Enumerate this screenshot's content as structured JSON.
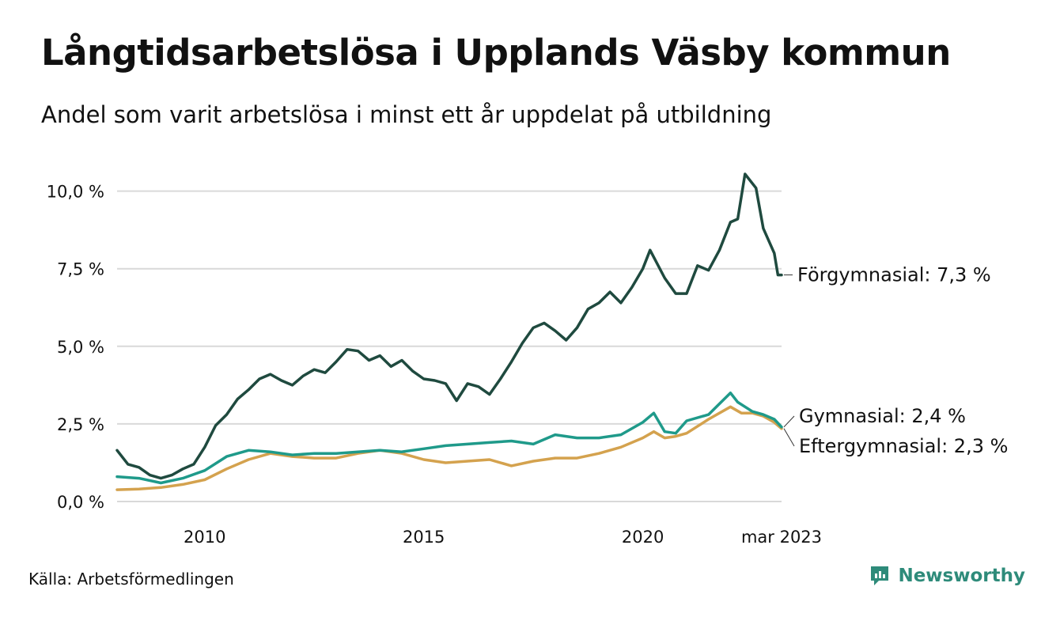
{
  "title": "Långtidsarbetslösa i Upplands Väsby kommun",
  "subtitle": "Andel som varit arbetslösa i minst ett år uppdelat på utbildning",
  "source": "Källa: Arbetsförmedlingen",
  "brand": "Newsworthy",
  "colors": {
    "forgymnasial": "#1f4a3f",
    "gymnasial": "#1f9a8a",
    "eftergymnasial": "#d4a24e",
    "grid": "#d9d9d9",
    "brand": "#2e8b7a"
  },
  "chart_data": {
    "type": "line",
    "title": "Långtidsarbetslösa i Upplands Väsby kommun",
    "xlabel": "",
    "ylabel": "",
    "ylim": [
      0,
      10.5
    ],
    "xlim": [
      "2008-01",
      "2023-03"
    ],
    "y_ticks": [
      "0,0 %",
      "2,5 %",
      "5,0 %",
      "7,5 %",
      "10,0 %"
    ],
    "y_tick_values": [
      0,
      2.5,
      5,
      7.5,
      10
    ],
    "x_ticks": [
      "2010",
      "2015",
      "2020",
      "mar 2023"
    ],
    "x_tick_values": [
      "2010-01",
      "2015-01",
      "2020-01",
      "2023-03"
    ],
    "grid": "horizontal",
    "series": [
      {
        "name": "Förgymnasial",
        "end_label": "Förgymnasial: 7,3 %",
        "color_key": "forgymnasial",
        "points": [
          [
            "2008-01",
            1.65
          ],
          [
            "2008-04",
            1.2
          ],
          [
            "2008-07",
            1.1
          ],
          [
            "2008-10",
            0.85
          ],
          [
            "2009-01",
            0.75
          ],
          [
            "2009-04",
            0.85
          ],
          [
            "2009-07",
            1.05
          ],
          [
            "2009-10",
            1.2
          ],
          [
            "2010-01",
            1.75
          ],
          [
            "2010-04",
            2.45
          ],
          [
            "2010-07",
            2.8
          ],
          [
            "2010-10",
            3.3
          ],
          [
            "2011-01",
            3.6
          ],
          [
            "2011-04",
            3.95
          ],
          [
            "2011-07",
            4.1
          ],
          [
            "2011-10",
            3.9
          ],
          [
            "2012-01",
            3.75
          ],
          [
            "2012-04",
            4.05
          ],
          [
            "2012-07",
            4.25
          ],
          [
            "2012-10",
            4.15
          ],
          [
            "2013-01",
            4.5
          ],
          [
            "2013-04",
            4.9
          ],
          [
            "2013-07",
            4.85
          ],
          [
            "2013-10",
            4.55
          ],
          [
            "2014-01",
            4.7
          ],
          [
            "2014-04",
            4.35
          ],
          [
            "2014-07",
            4.55
          ],
          [
            "2014-10",
            4.2
          ],
          [
            "2015-01",
            3.95
          ],
          [
            "2015-04",
            3.9
          ],
          [
            "2015-07",
            3.8
          ],
          [
            "2015-10",
            3.25
          ],
          [
            "2016-01",
            3.8
          ],
          [
            "2016-04",
            3.7
          ],
          [
            "2016-07",
            3.45
          ],
          [
            "2016-10",
            3.95
          ],
          [
            "2017-01",
            4.5
          ],
          [
            "2017-04",
            5.1
          ],
          [
            "2017-07",
            5.6
          ],
          [
            "2017-10",
            5.75
          ],
          [
            "2018-01",
            5.5
          ],
          [
            "2018-04",
            5.2
          ],
          [
            "2018-07",
            5.6
          ],
          [
            "2018-10",
            6.2
          ],
          [
            "2019-01",
            6.4
          ],
          [
            "2019-04",
            6.75
          ],
          [
            "2019-07",
            6.4
          ],
          [
            "2019-10",
            6.9
          ],
          [
            "2020-01",
            7.5
          ],
          [
            "2020-03",
            8.1
          ],
          [
            "2020-07",
            7.2
          ],
          [
            "2020-10",
            6.7
          ],
          [
            "2021-01",
            6.7
          ],
          [
            "2021-04",
            7.6
          ],
          [
            "2021-07",
            7.45
          ],
          [
            "2021-10",
            8.1
          ],
          [
            "2022-01",
            9.0
          ],
          [
            "2022-03",
            9.1
          ],
          [
            "2022-05",
            10.55
          ],
          [
            "2022-08",
            10.1
          ],
          [
            "2022-10",
            8.8
          ],
          [
            "2023-01",
            8.0
          ],
          [
            "2023-02",
            7.3
          ],
          [
            "2023-03",
            7.3
          ]
        ]
      },
      {
        "name": "Gymnasial",
        "end_label": "Gymnasial: 2,4 %",
        "color_key": "gymnasial",
        "points": [
          [
            "2008-01",
            0.8
          ],
          [
            "2008-07",
            0.75
          ],
          [
            "2009-01",
            0.6
          ],
          [
            "2009-07",
            0.75
          ],
          [
            "2010-01",
            1.0
          ],
          [
            "2010-07",
            1.45
          ],
          [
            "2011-01",
            1.65
          ],
          [
            "2011-07",
            1.6
          ],
          [
            "2012-01",
            1.5
          ],
          [
            "2012-07",
            1.55
          ],
          [
            "2013-01",
            1.55
          ],
          [
            "2013-07",
            1.6
          ],
          [
            "2014-01",
            1.65
          ],
          [
            "2014-07",
            1.6
          ],
          [
            "2015-01",
            1.7
          ],
          [
            "2015-07",
            1.8
          ],
          [
            "2016-01",
            1.85
          ],
          [
            "2016-07",
            1.9
          ],
          [
            "2017-01",
            1.95
          ],
          [
            "2017-07",
            1.85
          ],
          [
            "2018-01",
            2.15
          ],
          [
            "2018-07",
            2.05
          ],
          [
            "2019-01",
            2.05
          ],
          [
            "2019-07",
            2.15
          ],
          [
            "2020-01",
            2.55
          ],
          [
            "2020-04",
            2.85
          ],
          [
            "2020-07",
            2.25
          ],
          [
            "2020-10",
            2.2
          ],
          [
            "2021-01",
            2.6
          ],
          [
            "2021-07",
            2.8
          ],
          [
            "2022-01",
            3.5
          ],
          [
            "2022-03",
            3.2
          ],
          [
            "2022-07",
            2.9
          ],
          [
            "2022-10",
            2.8
          ],
          [
            "2023-01",
            2.65
          ],
          [
            "2023-03",
            2.4
          ]
        ]
      },
      {
        "name": "Eftergymnasial",
        "end_label": "Eftergymnasial: 2,3 %",
        "color_key": "eftergymnasial",
        "points": [
          [
            "2008-01",
            0.38
          ],
          [
            "2008-07",
            0.4
          ],
          [
            "2009-01",
            0.45
          ],
          [
            "2009-07",
            0.55
          ],
          [
            "2010-01",
            0.7
          ],
          [
            "2010-07",
            1.05
          ],
          [
            "2011-01",
            1.35
          ],
          [
            "2011-07",
            1.55
          ],
          [
            "2012-01",
            1.45
          ],
          [
            "2012-07",
            1.4
          ],
          [
            "2013-01",
            1.4
          ],
          [
            "2013-07",
            1.55
          ],
          [
            "2014-01",
            1.65
          ],
          [
            "2014-07",
            1.55
          ],
          [
            "2015-01",
            1.35
          ],
          [
            "2015-07",
            1.25
          ],
          [
            "2016-01",
            1.3
          ],
          [
            "2016-07",
            1.35
          ],
          [
            "2017-01",
            1.15
          ],
          [
            "2017-07",
            1.3
          ],
          [
            "2018-01",
            1.4
          ],
          [
            "2018-07",
            1.4
          ],
          [
            "2019-01",
            1.55
          ],
          [
            "2019-07",
            1.75
          ],
          [
            "2020-01",
            2.05
          ],
          [
            "2020-04",
            2.25
          ],
          [
            "2020-07",
            2.05
          ],
          [
            "2020-10",
            2.1
          ],
          [
            "2021-01",
            2.2
          ],
          [
            "2021-07",
            2.65
          ],
          [
            "2022-01",
            3.05
          ],
          [
            "2022-04",
            2.85
          ],
          [
            "2022-07",
            2.85
          ],
          [
            "2022-10",
            2.75
          ],
          [
            "2023-01",
            2.55
          ],
          [
            "2023-03",
            2.35
          ]
        ]
      }
    ]
  }
}
